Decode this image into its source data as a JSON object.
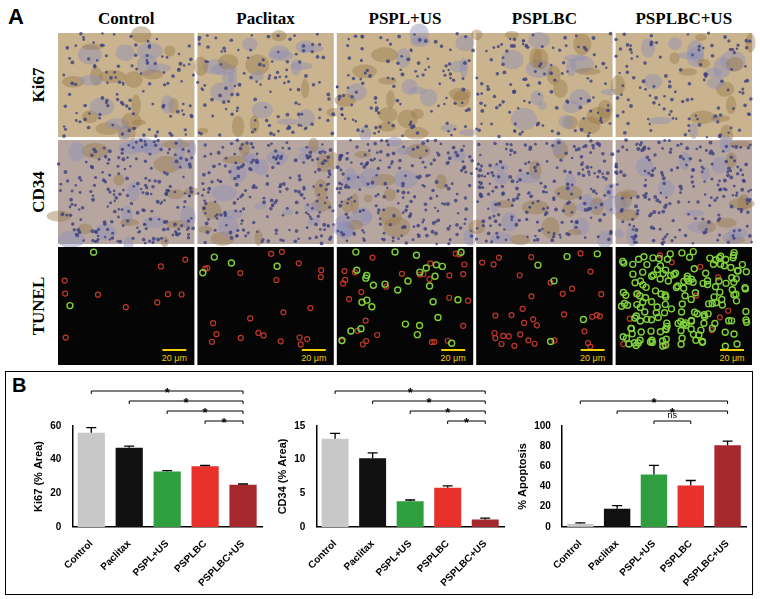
{
  "panel_a": {
    "label": "A",
    "columns": [
      "Control",
      "Paclitax",
      "PSPL+US",
      "PSPLBC",
      "PSPLBC+US"
    ],
    "rows": [
      {
        "label": "Ki67"
      },
      {
        "label": "CD34"
      },
      {
        "label": "TUNEL",
        "scale_bar_label": "20 μm"
      }
    ]
  },
  "panel_b_label": "B",
  "chart_data": [
    {
      "type": "bar",
      "y_label": "Ki67 (% Area)",
      "categories": [
        "Control",
        "Paclitax",
        "PSPL+US",
        "PSPLBC",
        "PSPLBC+US"
      ],
      "values": [
        56,
        47,
        33,
        36,
        25
      ],
      "errors": [
        3,
        1,
        0.5,
        0.5,
        0.5
      ],
      "colors": [
        "#c8c8c8",
        "#111111",
        "#2e9e3e",
        "#e8312a",
        "#a5282c"
      ],
      "ylim": [
        0,
        60
      ],
      "yticks": [
        0,
        20,
        40,
        60
      ],
      "grid": false,
      "significance": [
        {
          "from": "Control",
          "to": "PSPLBC+US",
          "label": "*"
        },
        {
          "from": "Paclitax",
          "to": "PSPLBC+US",
          "label": "*"
        },
        {
          "from": "PSPL+US",
          "to": "PSPLBC+US",
          "label": "*"
        },
        {
          "from": "PSPLBC",
          "to": "PSPLBC+US",
          "label": "*"
        }
      ]
    },
    {
      "type": "bar",
      "y_label": "CD34 (% Area)",
      "categories": [
        "Control",
        "Paclitax",
        "PSPL+US",
        "PSPLBC",
        "PSPLBC+US"
      ],
      "values": [
        13.1,
        10.2,
        3.8,
        5.8,
        1.1
      ],
      "errors": [
        0.8,
        0.8,
        0.2,
        0.3,
        0.2
      ],
      "colors": [
        "#c8c8c8",
        "#111111",
        "#2e9e3e",
        "#e8312a",
        "#a5282c"
      ],
      "ylim": [
        0,
        15
      ],
      "yticks": [
        0,
        5,
        10,
        15
      ],
      "grid": false,
      "significance": [
        {
          "from": "Control",
          "to": "PSPLBC+US",
          "label": "*"
        },
        {
          "from": "Paclitax",
          "to": "PSPLBC+US",
          "label": "*"
        },
        {
          "from": "PSPL+US",
          "to": "PSPLBC+US",
          "label": "*"
        },
        {
          "from": "PSPLBC",
          "to": "PSPLBC+US",
          "label": "*"
        }
      ]
    },
    {
      "type": "bar",
      "y_label": "% Apoptosis",
      "categories": [
        "Control",
        "Paclitax",
        "PSPL+US",
        "PSPLBC",
        "PSPLBC+US"
      ],
      "values": [
        3,
        18,
        52,
        41,
        81
      ],
      "errors": [
        1,
        3,
        9,
        5,
        4
      ],
      "colors": [
        "#c8c8c8",
        "#111111",
        "#2e9e3e",
        "#e8312a",
        "#a5282c"
      ],
      "ylim": [
        0,
        100
      ],
      "yticks": [
        0,
        20,
        40,
        60,
        80,
        100
      ],
      "grid": false,
      "significance": [
        {
          "from": "Control",
          "to": "PSPLBC+US",
          "label": "*"
        },
        {
          "from": "Paclitax",
          "to": "PSPLBC+US",
          "label": "*"
        },
        {
          "from": "PSPL+US",
          "to": "PSPLBC",
          "label": "ns"
        }
      ]
    }
  ]
}
